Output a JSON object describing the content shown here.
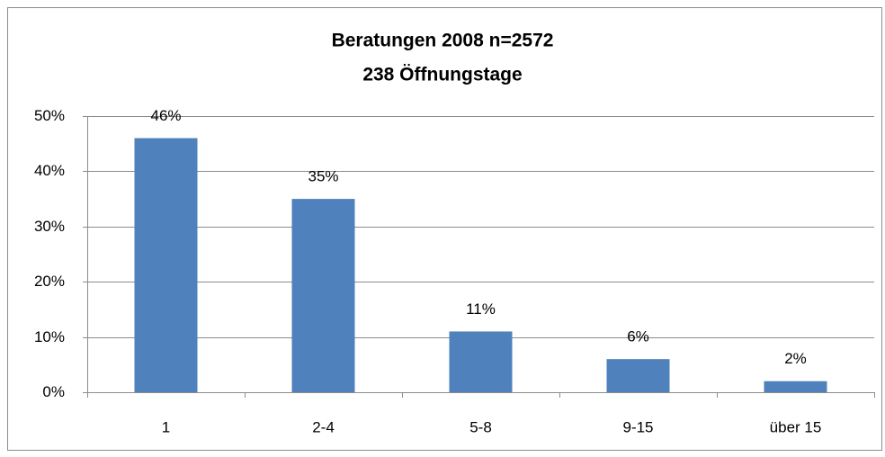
{
  "chart_data": {
    "type": "bar",
    "title": "Beratungen 2008  n=2572",
    "subtitle": "238 Öffnungstage",
    "categories": [
      "1",
      "2-4",
      "5-8",
      "9-15",
      "über 15"
    ],
    "values": [
      46,
      35,
      11,
      6,
      2
    ],
    "value_labels": [
      "46%",
      "35%",
      "11%",
      "6%",
      "2%"
    ],
    "color": "#4f81bd",
    "ylim": [
      0,
      50
    ],
    "yticks": [
      {
        "value": 0,
        "label": "0%"
      },
      {
        "value": 10,
        "label": "10%"
      },
      {
        "value": 20,
        "label": "20%"
      },
      {
        "value": 30,
        "label": "30%"
      },
      {
        "value": 40,
        "label": "40%"
      },
      {
        "value": 50,
        "label": "50%"
      }
    ],
    "grid": true
  }
}
